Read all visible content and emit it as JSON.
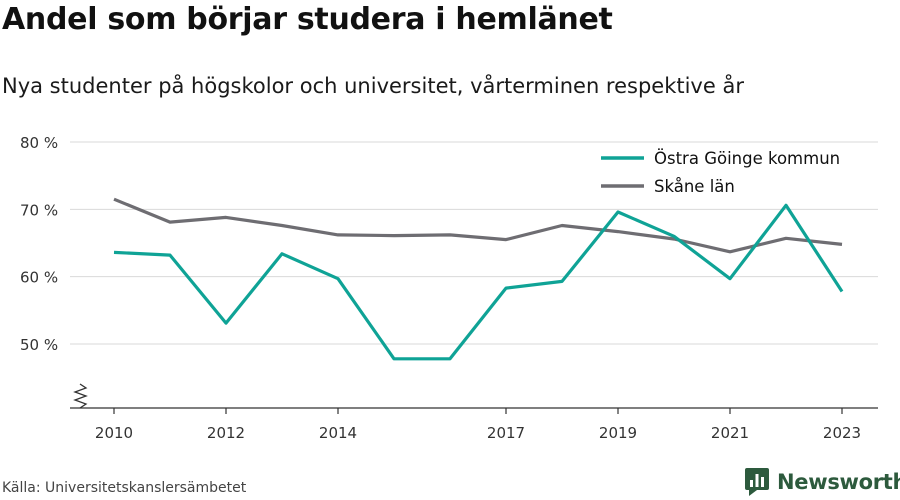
{
  "title": "Andel som börjar studera i hemlänet",
  "subtitle": "Nya studenter på högskolor och universitet, vårterminen respektive år",
  "source": "Källa: Universitetskanslersämbetet",
  "brand": {
    "name": "Newsworthy",
    "icon": "bar-chart-logo-icon",
    "color": "#2d5a3d"
  },
  "chart_data": {
    "type": "line",
    "x": [
      2010,
      2011,
      2012,
      2013,
      2014,
      2015,
      2016,
      2017,
      2018,
      2019,
      2020,
      2021,
      2022,
      2023
    ],
    "x_tick_labels": [
      "2010",
      "2012",
      "2014",
      "2017",
      "2019",
      "2021",
      "2023"
    ],
    "y_tick_labels": [
      "50 %",
      "60 %",
      "70 %",
      "80 %"
    ],
    "y_ticks": [
      50,
      60,
      70,
      80
    ],
    "ylim": [
      40.5,
      80
    ],
    "y_axis_break": true,
    "grid": true,
    "legend_position": "top-right",
    "series": [
      {
        "name": "Östra Göinge kommun",
        "color": "#0fa396",
        "values": [
          63.6,
          63.2,
          53.1,
          63.4,
          59.7,
          47.8,
          47.8,
          58.3,
          59.3,
          69.6,
          66.0,
          59.7,
          70.6,
          57.8
        ]
      },
      {
        "name": "Skåne län",
        "color": "#6e6d72",
        "values": [
          71.5,
          68.1,
          68.8,
          67.6,
          66.2,
          66.1,
          66.2,
          65.5,
          67.6,
          66.7,
          65.6,
          63.7,
          65.7,
          64.8
        ]
      }
    ]
  }
}
